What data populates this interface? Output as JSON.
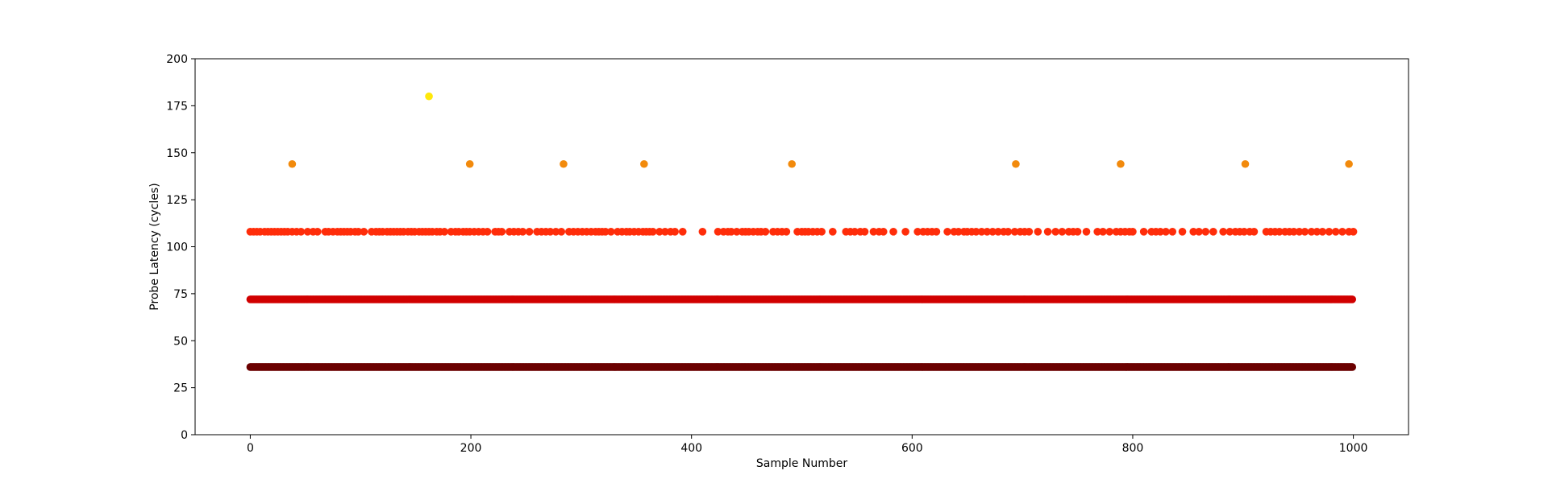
{
  "chart_data": {
    "type": "scatter",
    "title": "",
    "xlabel": "Sample Number",
    "ylabel": "Probe Latency (cycles)",
    "xlim": [
      -50,
      1050
    ],
    "ylim": [
      0,
      200
    ],
    "xticks": [
      0,
      200,
      400,
      600,
      800,
      1000
    ],
    "yticks": [
      0,
      25,
      50,
      75,
      100,
      125,
      150,
      175,
      200
    ],
    "grid": false,
    "legend": "none",
    "sample_count": 1000,
    "colormap": [
      {
        "level": 36,
        "color": "#6b0000"
      },
      {
        "level": 72,
        "color": "#d10000"
      },
      {
        "level": 108,
        "color": "#ff2d0a"
      },
      {
        "level": 144,
        "color": "#f28a0c"
      },
      {
        "level": 180,
        "color": "#ffe80a"
      }
    ],
    "bands": [
      {
        "y": 36,
        "x_start": 0,
        "x_end": 999,
        "step": 1
      },
      {
        "y": 72,
        "x_start": 0,
        "x_end": 999,
        "step": 1
      }
    ],
    "points_y108_x": [
      0,
      3,
      6,
      9,
      13,
      16,
      19,
      22,
      25,
      28,
      31,
      34,
      38,
      42,
      46,
      52,
      57,
      61,
      68,
      71,
      75,
      79,
      82,
      85,
      88,
      91,
      95,
      98,
      103,
      110,
      114,
      117,
      120,
      124,
      127,
      130,
      133,
      136,
      139,
      143,
      146,
      149,
      153,
      156,
      159,
      162,
      165,
      169,
      172,
      176,
      182,
      186,
      189,
      193,
      196,
      199,
      203,
      207,
      211,
      215,
      222,
      225,
      228,
      235,
      239,
      243,
      247,
      253,
      260,
      264,
      268,
      272,
      277,
      282,
      289,
      293,
      297,
      301,
      305,
      309,
      313,
      316,
      319,
      322,
      327,
      333,
      337,
      341,
      344,
      348,
      352,
      356,
      359,
      362,
      365,
      371,
      376,
      381,
      385,
      392,
      410,
      424,
      429,
      433,
      436,
      441,
      446,
      449,
      452,
      456,
      460,
      463,
      467,
      474,
      478,
      482,
      486,
      496,
      500,
      503,
      506,
      510,
      514,
      518,
      528,
      540,
      544,
      548,
      553,
      557,
      565,
      570,
      574,
      583,
      594,
      605,
      610,
      614,
      618,
      622,
      632,
      638,
      642,
      647,
      650,
      654,
      658,
      663,
      668,
      673,
      678,
      683,
      687,
      693,
      698,
      702,
      706,
      714,
      723,
      730,
      736,
      742,
      746,
      750,
      758,
      768,
      773,
      779,
      785,
      789,
      793,
      797,
      800,
      810,
      817,
      821,
      825,
      830,
      836,
      845,
      855,
      860,
      866,
      873,
      882,
      888,
      893,
      897,
      901,
      906,
      910,
      921,
      925,
      929,
      933,
      938,
      942,
      946,
      951,
      956,
      962,
      967,
      972,
      978,
      984,
      990,
      996,
      1000
    ],
    "points_y144_x": [
      38,
      199,
      284,
      357,
      491,
      694,
      789,
      902,
      996
    ],
    "points_y180_x": [
      162
    ]
  }
}
